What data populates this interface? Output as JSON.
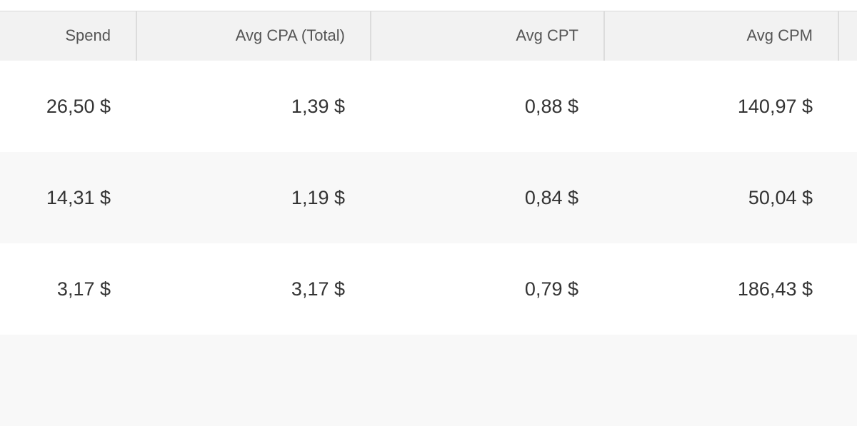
{
  "table": {
    "header": [
      "Spend",
      "Avg CPA (Total)",
      "Avg CPT",
      "Avg CPM"
    ],
    "rows": [
      [
        "26,50 $",
        "1,39 $",
        "0,88 $",
        "140,97 $"
      ],
      [
        "14,31 $",
        "1,19 $",
        "0,84 $",
        "50,04 $"
      ],
      [
        "3,17 $",
        "3,17 $",
        "0,79 $",
        "186,43 $"
      ]
    ]
  }
}
